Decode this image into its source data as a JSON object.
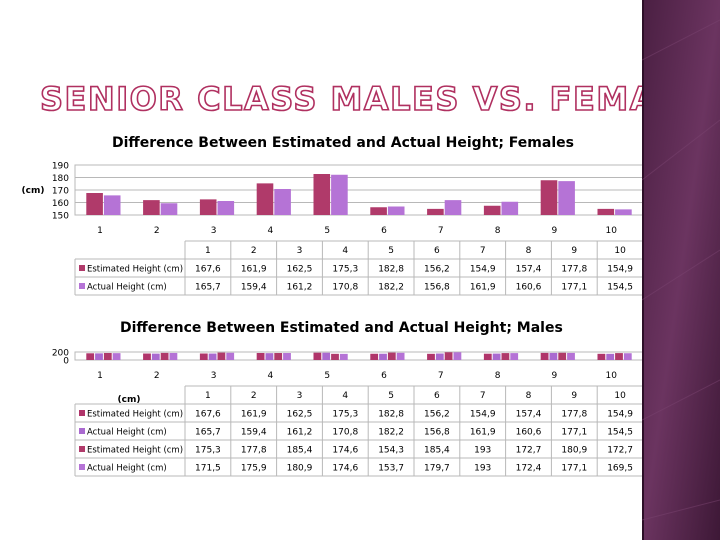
{
  "slide": {
    "title": "SENIOR CLASS MALES VS. FEMALES"
  },
  "theme": {
    "accent_dark": "#b03060",
    "accent_light": "#b36bd9",
    "female_est": "#b03a6a",
    "female_act": "#b573d6",
    "male_est": "#b0356a",
    "male_act": "#aa6ad0",
    "side_bar": "#5a2a4e"
  },
  "chart_data": [
    {
      "type": "bar",
      "title": "Difference Between Estimated and Actual Height; Females",
      "ylabel": "(cm)",
      "categories": [
        "1",
        "2",
        "3",
        "4",
        "5",
        "6",
        "7",
        "8",
        "9",
        "10"
      ],
      "ylim": [
        150,
        190
      ],
      "yticks": [
        "150",
        "160",
        "170",
        "180",
        "190"
      ],
      "series": [
        {
          "name": "Estimated Height (cm)",
          "values": [
            167.6,
            161.9,
            162.5,
            175.3,
            182.8,
            156.2,
            154.9,
            157.4,
            177.8,
            154.9
          ],
          "labels": [
            "167,6",
            "161,9",
            "162,5",
            "175,3",
            "182,8",
            "156,2",
            "154,9",
            "157,4",
            "177,8",
            "154,9"
          ]
        },
        {
          "name": "Actual Height (cm)",
          "values": [
            165.7,
            159.4,
            161.2,
            170.8,
            182.2,
            156.8,
            161.9,
            160.6,
            177.1,
            154.5
          ],
          "labels": [
            "165,7",
            "159,4",
            "161,2",
            "170,8",
            "182,2",
            "156,8",
            "161,9",
            "160,6",
            "177,1",
            "154,5"
          ]
        }
      ]
    },
    {
      "type": "bar",
      "title": "Difference Between Estimated and Actual Height; Males",
      "ylabel": "(cm)",
      "categories": [
        "1",
        "2",
        "3",
        "4",
        "5",
        "6",
        "7",
        "8",
        "9",
        "10"
      ],
      "ylim": [
        0,
        200
      ],
      "yticks": [
        "0",
        "200"
      ],
      "series": [
        {
          "name": "Estimated Height (cm)",
          "values": [
            167.6,
            161.9,
            162.5,
            175.3,
            182.8,
            156.2,
            154.9,
            157.4,
            177.8,
            154.9
          ],
          "labels": [
            "167,6",
            "161,9",
            "162,5",
            "175,3",
            "182,8",
            "156,2",
            "154,9",
            "157,4",
            "177,8",
            "154,9"
          ]
        },
        {
          "name": "Actual Height (cm)",
          "values": [
            165.7,
            159.4,
            161.2,
            170.8,
            182.2,
            156.8,
            161.9,
            160.6,
            177.1,
            154.5
          ],
          "labels": [
            "165,7",
            "159,4",
            "161,2",
            "170,8",
            "182,2",
            "156,8",
            "161,9",
            "160,6",
            "177,1",
            "154,5"
          ]
        },
        {
          "name": "Estimated Height (cm)",
          "values": [
            175.3,
            177.8,
            185.4,
            174.6,
            154.3,
            185.4,
            193,
            172.7,
            180.9,
            172.7
          ],
          "labels": [
            "175,3",
            "177,8",
            "185,4",
            "174,6",
            "154,3",
            "185,4",
            "193",
            "172,7",
            "180,9",
            "172,7"
          ]
        },
        {
          "name": "Actual Height (cm)",
          "values": [
            171.5,
            175.9,
            180.9,
            174.6,
            153.7,
            179.7,
            193,
            172.4,
            177.1,
            169.5
          ],
          "labels": [
            "171,5",
            "175,9",
            "180,9",
            "174,6",
            "153,7",
            "179,7",
            "193",
            "172,4",
            "177,1",
            "169,5"
          ]
        }
      ]
    }
  ]
}
